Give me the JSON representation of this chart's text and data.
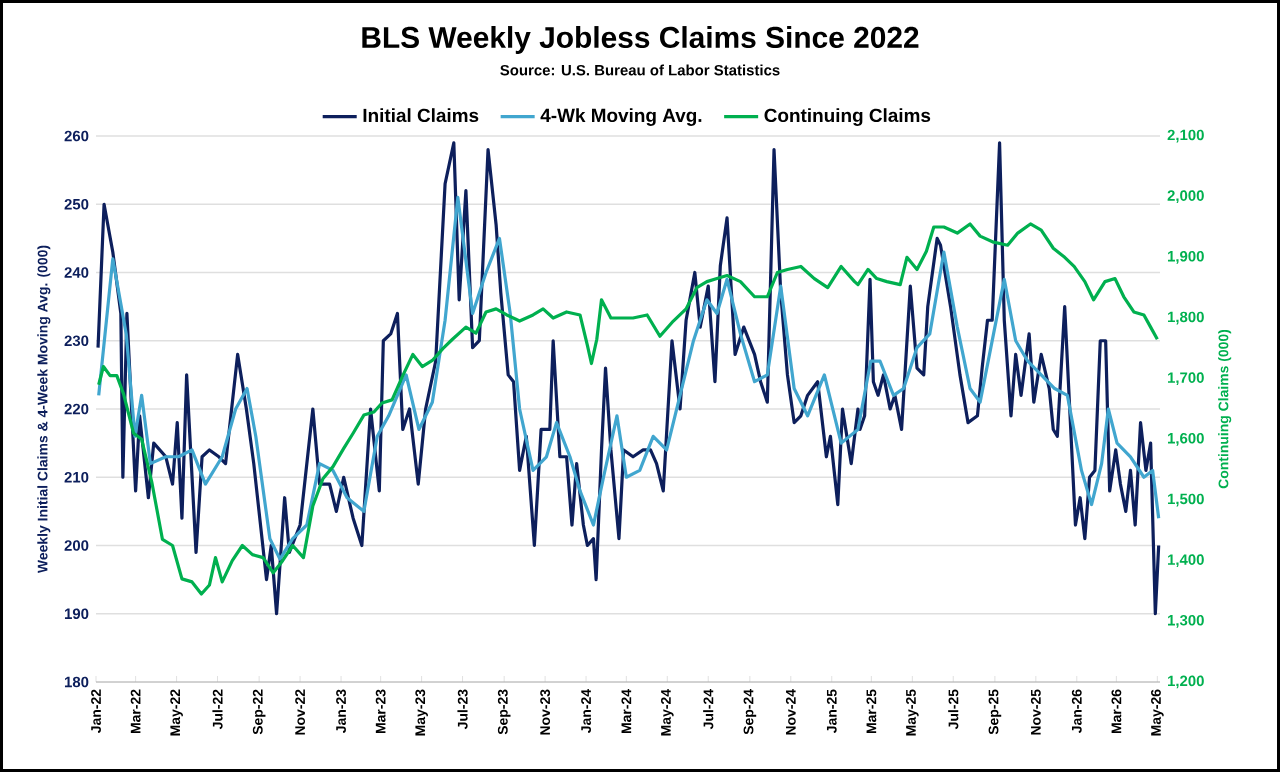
{
  "chart_data": {
    "type": "line",
    "title": "BLS Weekly Jobless Claims Since 2022",
    "subtitle": "Source: U.S. Bureau of Labor Statistics",
    "ylabel": "Weekly Initial Claims & 4-Week Moving Avg. (000)",
    "y2label": "Continuing Claims (000)",
    "xlim": [
      "2022-01-01",
      "2026-05-05"
    ],
    "ylim": [
      180,
      260
    ],
    "y2lim": [
      1200,
      2100
    ],
    "xticks": [
      {
        "value": "2022-01-01",
        "label": "Jan-22"
      },
      {
        "value": "2022-03-01",
        "label": "Mar-22"
      },
      {
        "value": "2022-05-01",
        "label": "May-22"
      },
      {
        "value": "2022-07-01",
        "label": "Jul-22"
      },
      {
        "value": "2022-09-01",
        "label": "Sep-22"
      },
      {
        "value": "2022-11-01",
        "label": "Nov-22"
      },
      {
        "value": "2023-01-01",
        "label": "Jan-23"
      },
      {
        "value": "2023-03-01",
        "label": "Mar-23"
      },
      {
        "value": "2023-05-01",
        "label": "May-23"
      },
      {
        "value": "2023-07-01",
        "label": "Jul-23"
      },
      {
        "value": "2023-09-01",
        "label": "Sep-23"
      },
      {
        "value": "2023-11-01",
        "label": "Nov-23"
      },
      {
        "value": "2024-01-01",
        "label": "Jan-24"
      },
      {
        "value": "2024-03-01",
        "label": "Mar-24"
      },
      {
        "value": "2024-05-01",
        "label": "May-24"
      },
      {
        "value": "2024-07-01",
        "label": "Jul-24"
      },
      {
        "value": "2024-09-01",
        "label": "Sep-24"
      },
      {
        "value": "2024-11-01",
        "label": "Nov-24"
      },
      {
        "value": "2025-01-01",
        "label": "Jan-25"
      },
      {
        "value": "2025-03-01",
        "label": "Mar-25"
      },
      {
        "value": "2025-05-01",
        "label": "May-25"
      },
      {
        "value": "2025-07-01",
        "label": "Jul-25"
      },
      {
        "value": "2025-09-01",
        "label": "Sep-25"
      },
      {
        "value": "2025-11-01",
        "label": "Nov-25"
      },
      {
        "value": "2026-01-01",
        "label": "Jan-26"
      },
      {
        "value": "2026-03-01",
        "label": "Mar-26"
      },
      {
        "value": "2026-05-01",
        "label": "May-26"
      }
    ],
    "yticks": [
      180,
      190,
      200,
      210,
      220,
      230,
      240,
      250,
      260
    ],
    "y2ticks": [
      {
        "value": 1200,
        "label": "1,200"
      },
      {
        "value": 1300,
        "label": "1,300"
      },
      {
        "value": 1400,
        "label": "1,400"
      },
      {
        "value": 1500,
        "label": "1,500"
      },
      {
        "value": 1600,
        "label": "1,600"
      },
      {
        "value": 1700,
        "label": "1,700"
      },
      {
        "value": 1800,
        "label": "1,800"
      },
      {
        "value": 1900,
        "label": "1,900"
      },
      {
        "value": 2000,
        "label": "2,000"
      },
      {
        "value": 2100,
        "label": "2,100"
      }
    ],
    "grid": "y",
    "legend": "top",
    "series": [
      {
        "name": "Initial Claims",
        "color": "#0d1f5c",
        "x": [
          "2022-01-04",
          "2022-01-13",
          "2022-01-26",
          "2022-02-07",
          "2022-02-10",
          "2022-02-16",
          "2022-03-01",
          "2022-03-07",
          "2022-03-20",
          "2022-03-28",
          "2022-04-15",
          "2022-04-25",
          "2022-05-02",
          "2022-05-09",
          "2022-05-16",
          "2022-05-30",
          "2022-06-08",
          "2022-06-19",
          "2022-07-03",
          "2022-07-13",
          "2022-07-31",
          "2022-08-13",
          "2022-08-24",
          "2022-09-12",
          "2022-09-19",
          "2022-09-27",
          "2022-10-09",
          "2022-10-16",
          "2022-11-01",
          "2022-11-20",
          "2022-11-30",
          "2022-12-15",
          "2022-12-25",
          "2023-01-05",
          "2023-01-19",
          "2023-02-01",
          "2023-02-14",
          "2023-02-27",
          "2023-03-05",
          "2023-03-16",
          "2023-03-26",
          "2023-04-03",
          "2023-04-13",
          "2023-04-26",
          "2023-05-07",
          "2023-05-22",
          "2023-06-05",
          "2023-06-18",
          "2023-06-26",
          "2023-07-06",
          "2023-07-16",
          "2023-07-26",
          "2023-08-08",
          "2023-08-20",
          "2023-08-27",
          "2023-09-07",
          "2023-09-15",
          "2023-09-24",
          "2023-10-04",
          "2023-10-16",
          "2023-10-26",
          "2023-11-08",
          "2023-11-13",
          "2023-11-23",
          "2023-12-03",
          "2023-12-11",
          "2023-12-18",
          "2023-12-28",
          "2024-01-03",
          "2024-01-12",
          "2024-01-16",
          "2024-01-24",
          "2024-01-30",
          "2024-02-07",
          "2024-02-19",
          "2024-02-26",
          "2024-03-11",
          "2024-03-26",
          "2024-04-06",
          "2024-04-15",
          "2024-04-25",
          "2024-05-08",
          "2024-05-20",
          "2024-05-29",
          "2024-06-11",
          "2024-06-19",
          "2024-07-01",
          "2024-07-11",
          "2024-07-19",
          "2024-07-29",
          "2024-08-10",
          "2024-08-23",
          "2024-09-08",
          "2024-09-17",
          "2024-09-27",
          "2024-10-07",
          "2024-10-17",
          "2024-10-27",
          "2024-11-06",
          "2024-11-16",
          "2024-11-26",
          "2024-12-11",
          "2024-12-24",
          "2024-12-30",
          "2025-01-10",
          "2025-01-17",
          "2025-01-30",
          "2025-02-09",
          "2025-02-12",
          "2025-02-19",
          "2025-02-27",
          "2025-03-04",
          "2025-03-11",
          "2025-03-19",
          "2025-03-29",
          "2025-04-05",
          "2025-04-15",
          "2025-04-28",
          "2025-05-08",
          "2025-05-18",
          "2025-05-24",
          "2025-06-07",
          "2025-06-12",
          "2025-06-27",
          "2025-07-11",
          "2025-07-23",
          "2025-08-06",
          "2025-08-13",
          "2025-08-21",
          "2025-08-28",
          "2025-09-08",
          "2025-09-15",
          "2025-09-25",
          "2025-10-02",
          "2025-10-10",
          "2025-10-22",
          "2025-10-29",
          "2025-11-09",
          "2025-11-21",
          "2025-11-27",
          "2025-12-03",
          "2025-12-14",
          "2025-12-21",
          "2025-12-30",
          "2026-01-06",
          "2026-01-13",
          "2026-01-20",
          "2026-01-28",
          "2026-02-05",
          "2026-02-13",
          "2026-02-19",
          "2026-02-28",
          "2026-03-07",
          "2026-03-15",
          "2026-03-22",
          "2026-03-29",
          "2026-04-06",
          "2026-04-14",
          "2026-04-21",
          "2026-04-28",
          "2026-05-03"
        ],
        "values": [
          229,
          250,
          243,
          234,
          210,
          234,
          208,
          219,
          207,
          215,
          213,
          209,
          218,
          204,
          225,
          199,
          213,
          214,
          213,
          212,
          228,
          220,
          212,
          195,
          200,
          190,
          207,
          199,
          203,
          220,
          209,
          209,
          205,
          210,
          204,
          200,
          220,
          208,
          230,
          231,
          234,
          217,
          220,
          209,
          220,
          227,
          253,
          259,
          236,
          252,
          229,
          230,
          258,
          247,
          237,
          225,
          224,
          211,
          216,
          200,
          217,
          217,
          230,
          213,
          213,
          203,
          212,
          203,
          200,
          201,
          195,
          214,
          226,
          214,
          201,
          214,
          213,
          214,
          214,
          212,
          208,
          230,
          220,
          233,
          240,
          232,
          238,
          224,
          241,
          248,
          228,
          232,
          228,
          224,
          221,
          258,
          237,
          225,
          218,
          219,
          222,
          224,
          213,
          216,
          206,
          220,
          212,
          220,
          217,
          219,
          239,
          224,
          222,
          225,
          220,
          222,
          217,
          238,
          226,
          225,
          235,
          245,
          244,
          235,
          225,
          218,
          219,
          226,
          233,
          233,
          259,
          233,
          219,
          228,
          222,
          231,
          221,
          228,
          223,
          217,
          216,
          235,
          221,
          203,
          207,
          201,
          210,
          211,
          230,
          230,
          208,
          214,
          209,
          205,
          211,
          203,
          218,
          211,
          215,
          190,
          200
        ]
      },
      {
        "name": "4-Wk Moving Avg.",
        "color": "#41a6cf",
        "x": [
          "2022-01-05",
          "2022-01-26",
          "2022-02-15",
          "2022-02-28",
          "2022-03-10",
          "2022-03-23",
          "2022-04-15",
          "2022-05-04",
          "2022-05-24",
          "2022-06-13",
          "2022-07-08",
          "2022-07-28",
          "2022-08-14",
          "2022-08-27",
          "2022-09-17",
          "2022-10-02",
          "2022-10-21",
          "2022-11-11",
          "2022-11-30",
          "2022-12-20",
          "2023-01-10",
          "2023-02-04",
          "2023-02-24",
          "2023-03-13",
          "2023-04-08",
          "2023-04-27",
          "2023-05-17",
          "2023-06-05",
          "2023-06-24",
          "2023-07-16",
          "2023-08-05",
          "2023-08-25",
          "2023-09-10",
          "2023-09-24",
          "2023-10-14",
          "2023-11-03",
          "2023-11-18",
          "2023-12-08",
          "2023-12-23",
          "2024-01-12",
          "2024-01-27",
          "2024-02-16",
          "2024-03-01",
          "2024-03-21",
          "2024-04-10",
          "2024-04-30",
          "2024-05-20",
          "2024-06-09",
          "2024-06-29",
          "2024-07-14",
          "2024-07-29",
          "2024-08-18",
          "2024-09-08",
          "2024-09-27",
          "2024-10-17",
          "2024-11-06",
          "2024-11-26",
          "2024-12-21",
          "2025-01-15",
          "2025-02-09",
          "2025-02-28",
          "2025-03-14",
          "2025-04-03",
          "2025-04-18",
          "2025-05-08",
          "2025-05-27",
          "2025-06-17",
          "2025-07-07",
          "2025-07-26",
          "2025-08-10",
          "2025-08-30",
          "2025-09-15",
          "2025-10-02",
          "2025-10-20",
          "2025-11-09",
          "2025-11-29",
          "2025-12-18",
          "2026-01-08",
          "2026-01-23",
          "2026-02-07",
          "2026-02-17",
          "2026-03-02",
          "2026-03-22",
          "2026-04-11",
          "2026-04-24",
          "2026-05-03"
        ],
        "values": [
          222,
          242,
          231,
          216,
          222,
          212,
          213,
          213,
          214,
          209,
          213,
          220,
          223,
          216,
          201,
          198,
          201,
          203,
          212,
          211,
          207,
          205,
          216,
          219,
          225,
          217,
          221,
          233,
          251,
          234,
          240,
          245,
          234,
          220,
          211,
          213,
          218,
          213,
          208,
          203,
          210,
          219,
          210,
          211,
          216,
          214,
          222,
          230,
          236,
          234,
          239,
          231,
          224,
          225,
          238,
          223,
          219,
          225,
          215,
          217,
          227,
          227,
          222,
          223,
          229,
          231,
          243,
          232,
          223,
          221,
          231,
          239,
          230,
          227,
          225,
          223,
          222,
          211,
          206,
          212,
          220,
          215,
          213,
          210,
          211,
          204
        ]
      },
      {
        "name": "Continuing Claims",
        "color": "#00b04f",
        "axis": "y2",
        "x": [
          "2022-01-05",
          "2022-01-12",
          "2022-01-22",
          "2022-02-01",
          "2022-02-11",
          "2022-02-26",
          "2022-03-10",
          "2022-03-25",
          "2022-04-10",
          "2022-04-25",
          "2022-05-09",
          "2022-05-24",
          "2022-06-07",
          "2022-06-19",
          "2022-06-28",
          "2022-07-08",
          "2022-07-23",
          "2022-08-07",
          "2022-08-22",
          "2022-09-07",
          "2022-09-22",
          "2022-10-06",
          "2022-10-21",
          "2022-11-06",
          "2022-11-20",
          "2022-12-05",
          "2022-12-20",
          "2023-01-05",
          "2023-01-19",
          "2023-02-04",
          "2023-02-19",
          "2023-03-03",
          "2023-03-18",
          "2023-04-03",
          "2023-04-18",
          "2023-05-02",
          "2023-05-17",
          "2023-06-02",
          "2023-06-16",
          "2023-07-06",
          "2023-07-21",
          "2023-08-05",
          "2023-08-20",
          "2023-09-05",
          "2023-09-24",
          "2023-10-14",
          "2023-10-29",
          "2023-11-13",
          "2023-12-03",
          "2023-12-23",
          "2024-01-03",
          "2024-01-09",
          "2024-01-17",
          "2024-01-24",
          "2024-02-07",
          "2024-02-22",
          "2024-03-11",
          "2024-04-01",
          "2024-04-20",
          "2024-05-10",
          "2024-05-29",
          "2024-06-14",
          "2024-06-29",
          "2024-07-14",
          "2024-07-29",
          "2024-08-18",
          "2024-09-08",
          "2024-09-27",
          "2024-10-12",
          "2024-10-27",
          "2024-11-16",
          "2024-12-06",
          "2024-12-26",
          "2025-01-15",
          "2025-02-04",
          "2025-02-09",
          "2025-02-24",
          "2025-03-09",
          "2025-03-24",
          "2025-04-13",
          "2025-04-23",
          "2025-05-08",
          "2025-05-22",
          "2025-06-02",
          "2025-06-17",
          "2025-07-07",
          "2025-07-26",
          "2025-08-10",
          "2025-08-30",
          "2025-09-20",
          "2025-10-05",
          "2025-10-24",
          "2025-11-09",
          "2025-11-27",
          "2025-12-14",
          "2025-12-28",
          "2026-01-13",
          "2026-01-26",
          "2026-02-12",
          "2026-02-27",
          "2026-03-12",
          "2026-03-27",
          "2026-04-11",
          "2026-04-21",
          "2026-05-01"
        ],
        "values": [
          1690,
          1720,
          1705,
          1705,
          1675,
          1610,
          1600,
          1530,
          1435,
          1425,
          1370,
          1365,
          1345,
          1360,
          1405,
          1365,
          1400,
          1425,
          1410,
          1405,
          1380,
          1400,
          1425,
          1405,
          1490,
          1535,
          1555,
          1585,
          1610,
          1640,
          1645,
          1660,
          1665,
          1705,
          1740,
          1720,
          1730,
          1750,
          1765,
          1785,
          1775,
          1810,
          1815,
          1805,
          1795,
          1805,
          1815,
          1800,
          1810,
          1805,
          1755,
          1725,
          1765,
          1830,
          1800,
          1800,
          1800,
          1805,
          1770,
          1795,
          1815,
          1850,
          1860,
          1865,
          1870,
          1860,
          1835,
          1835,
          1875,
          1880,
          1885,
          1865,
          1850,
          1885,
          1860,
          1855,
          1880,
          1865,
          1860,
          1855,
          1900,
          1880,
          1910,
          1950,
          1950,
          1940,
          1955,
          1935,
          1925,
          1920,
          1940,
          1955,
          1945,
          1915,
          1900,
          1885,
          1860,
          1830,
          1860,
          1865,
          1835,
          1810,
          1805,
          1785,
          1765
        ]
      }
    ]
  }
}
